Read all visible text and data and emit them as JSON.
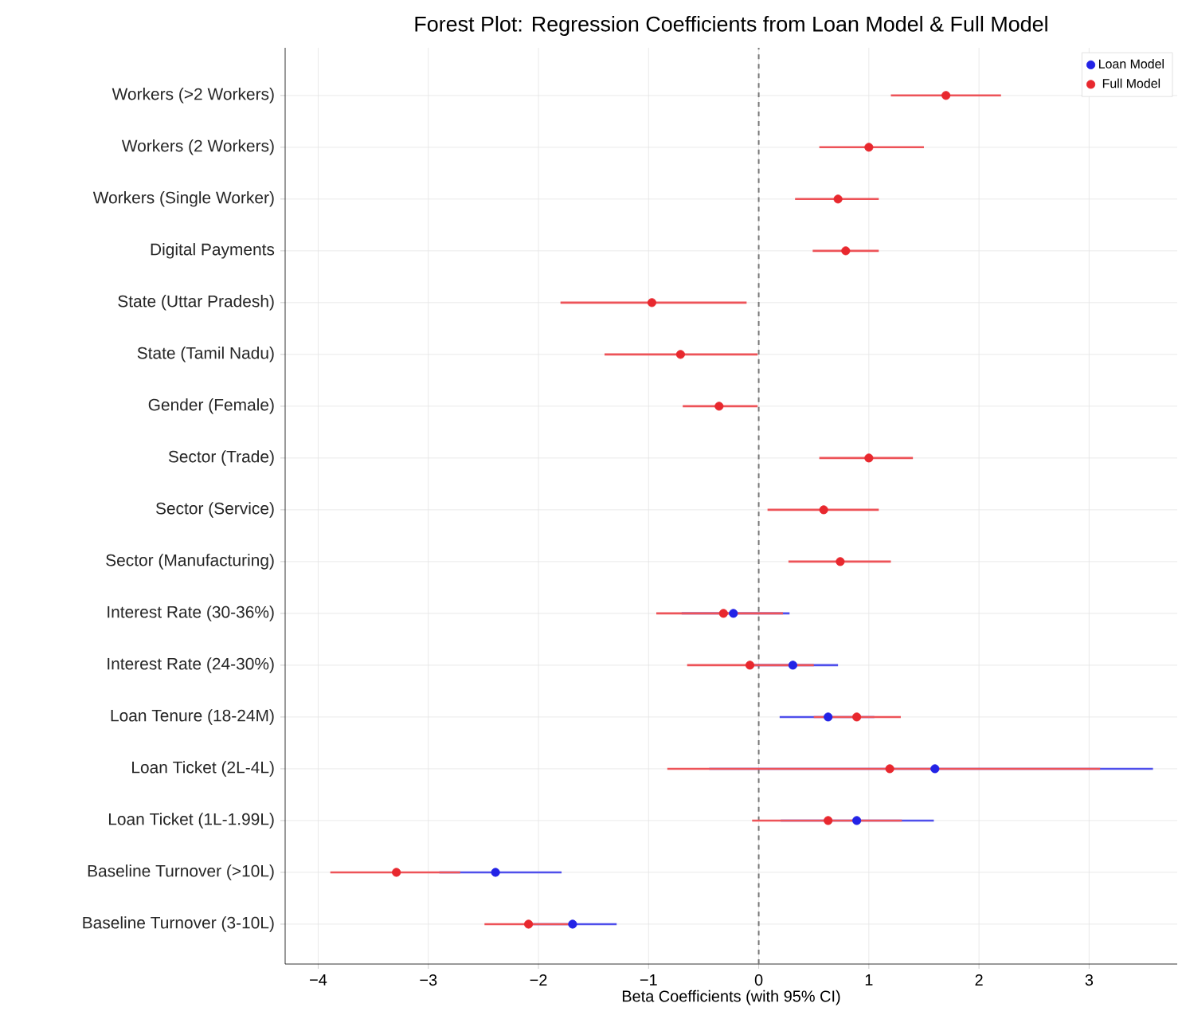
{
  "chart_data": {
    "type": "scatter",
    "orientation": "horizontal",
    "title": "Forest Plot: Regression Coefficients from Loan Model & Full Model",
    "xlabel": "Beta Coefficients (with 95% CI)",
    "categories": [
      "Workers (>2 Workers)",
      "Workers (2 Workers)",
      "Workers (Single Worker)",
      "Digital Payments",
      "State (Uttar Pradesh)",
      "State (Tamil Nadu)",
      "Gender (Female)",
      "Sector (Trade)",
      "Sector (Service)",
      "Sector (Manufacturing)",
      "Interest Rate (30-36%)",
      "Interest Rate (24-30%)",
      "Loan Tenure (18-24M)",
      "Loan Ticket (2L-4L)",
      "Loan Ticket (1L-1.99L)",
      "Baseline Turnover (>10L)",
      "Baseline Turnover (3-10L)"
    ],
    "series": [
      {
        "name": "Loan Model",
        "color": "#2323e6",
        "values": [
          null,
          null,
          null,
          null,
          null,
          null,
          null,
          null,
          null,
          null,
          -0.23,
          0.31,
          0.63,
          1.6,
          0.89,
          -2.39,
          -1.69
        ],
        "errors": [
          null,
          null,
          null,
          null,
          null,
          null,
          null,
          null,
          null,
          null,
          [
            -0.7,
            0.28
          ],
          [
            -0.1,
            0.72
          ],
          [
            0.19,
            1.05
          ],
          [
            -0.45,
            3.58
          ],
          [
            0.2,
            1.59
          ],
          [
            -2.9,
            -1.79
          ],
          [
            -2.1,
            -1.29
          ]
        ]
      },
      {
        "name": "Full Model",
        "color": "#e8282e",
        "values": [
          1.7,
          1.0,
          0.72,
          0.79,
          -0.97,
          -0.71,
          -0.36,
          1.0,
          0.59,
          0.74,
          -0.32,
          -0.08,
          0.89,
          1.19,
          0.63,
          -3.29,
          -2.09
        ],
        "errors": [
          [
            1.2,
            2.2
          ],
          [
            0.55,
            1.5
          ],
          [
            0.33,
            1.09
          ],
          [
            0.49,
            1.09
          ],
          [
            -1.8,
            -0.11
          ],
          [
            -1.4,
            -0.01
          ],
          [
            -0.69,
            -0.01
          ],
          [
            0.55,
            1.4
          ],
          [
            0.08,
            1.09
          ],
          [
            0.27,
            1.2
          ],
          [
            -0.93,
            0.22
          ],
          [
            -0.65,
            0.5
          ],
          [
            0.5,
            1.29
          ],
          [
            -0.83,
            3.1
          ],
          [
            -0.06,
            1.3
          ],
          [
            -3.89,
            -2.71
          ],
          [
            -2.49,
            -1.7
          ]
        ]
      }
    ],
    "xlim": [
      -4.3,
      3.8
    ],
    "xticks": [
      {
        "value": -4,
        "label": "−4"
      },
      {
        "value": -3,
        "label": "−3"
      },
      {
        "value": -2,
        "label": "−2"
      },
      {
        "value": -1,
        "label": "−1"
      },
      0,
      1,
      2,
      3
    ],
    "ref_lines": [
      {
        "axis": "x",
        "value": 0,
        "color": "#777777",
        "line_style": "dashed"
      }
    ],
    "grid": true,
    "legend": "top right",
    "marker": "circle"
  }
}
